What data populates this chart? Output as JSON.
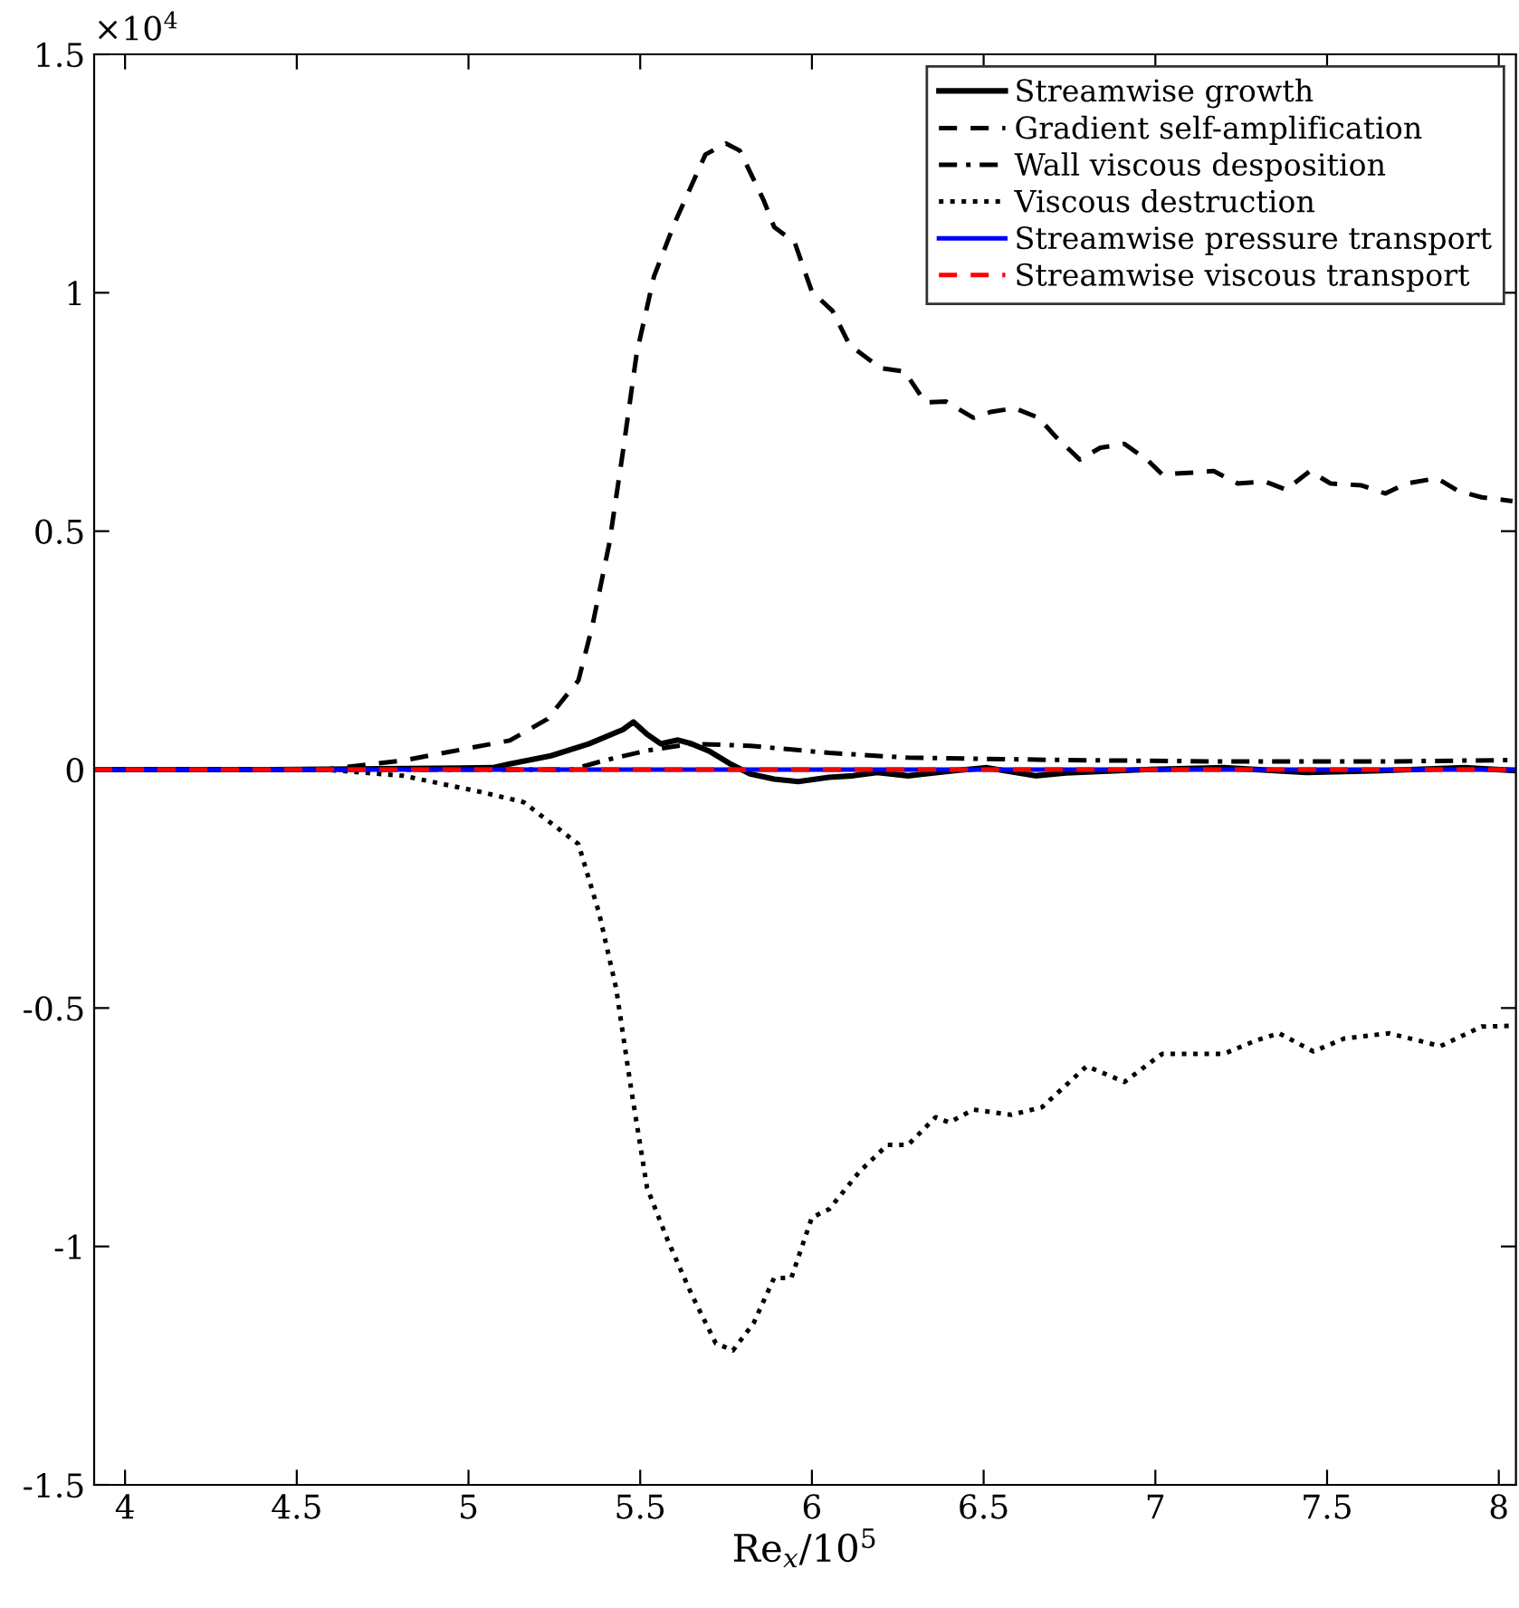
{
  "chart_data": {
    "type": "line",
    "xlabel": "Re$_{x}$/10$^{5}$",
    "annotations": [
      "×10$^{4}$"
    ],
    "xlim": [
      3.91,
      8.05
    ],
    "xticks": [
      4,
      4.5,
      5,
      5.5,
      6,
      6.5,
      7,
      7.5,
      8
    ],
    "ylim": [
      -1.5,
      1.5
    ],
    "yticks": [
      -1.5,
      -1,
      -0.5,
      0,
      0.5,
      1,
      1.5
    ],
    "grid": false,
    "legend": "top right",
    "series": [
      {
        "name": "Streamwise growth",
        "color": "#000000",
        "line_style": "solid",
        "x": [
          3.91,
          4.43,
          5.07,
          5.12,
          5.24,
          5.35,
          5.45,
          5.48,
          5.52,
          5.56,
          5.61,
          5.65,
          5.7,
          5.76,
          5.82,
          5.89,
          5.96,
          6.05,
          6.12,
          6.19,
          6.28,
          6.42,
          6.51,
          6.65,
          6.74,
          6.97,
          7.2,
          7.44,
          7.67,
          7.9,
          8.05
        ],
        "values": [
          0,
          0,
          0.004,
          0.012,
          0.029,
          0.054,
          0.084,
          0.1,
          0.074,
          0.054,
          0.062,
          0.054,
          0.039,
          0.013,
          -0.009,
          -0.02,
          -0.025,
          -0.016,
          -0.013,
          -0.006,
          -0.013,
          -0.002,
          0.004,
          -0.013,
          -0.007,
          0,
          0.004,
          -0.006,
          -0.002,
          0.004,
          -0.002
        ]
      },
      {
        "name": "Gradient self-amplification",
        "color": "#000000",
        "line_style": "dashed",
        "x": [
          3.91,
          4.58,
          4.81,
          5.12,
          5.23,
          5.32,
          5.36,
          5.41,
          5.45,
          5.49,
          5.54,
          5.6,
          5.69,
          5.75,
          5.79,
          5.86,
          5.89,
          5.95,
          6.0,
          6.06,
          6.11,
          6.2,
          6.27,
          6.33,
          6.39,
          6.47,
          6.52,
          6.59,
          6.66,
          6.71,
          6.78,
          6.84,
          6.91,
          6.98,
          7.02,
          7.11,
          7.17,
          7.24,
          7.32,
          7.38,
          7.45,
          7.51,
          7.6,
          7.67,
          7.73,
          7.82,
          7.88,
          7.95,
          8.04
        ],
        "values": [
          0,
          0,
          0.019,
          0.061,
          0.106,
          0.187,
          0.299,
          0.474,
          0.668,
          0.874,
          1.034,
          1.146,
          1.29,
          1.313,
          1.298,
          1.193,
          1.138,
          1.105,
          1.002,
          0.962,
          0.89,
          0.842,
          0.835,
          0.77,
          0.772,
          0.738,
          0.75,
          0.758,
          0.738,
          0.698,
          0.65,
          0.675,
          0.683,
          0.647,
          0.619,
          0.623,
          0.626,
          0.6,
          0.604,
          0.587,
          0.626,
          0.6,
          0.596,
          0.579,
          0.6,
          0.611,
          0.585,
          0.571,
          0.563
        ]
      },
      {
        "name": "Wall viscous desposition",
        "color": "#000000",
        "line_style": "dashdot",
        "x": [
          3.91,
          5.3,
          5.4,
          5.52,
          5.65,
          5.82,
          6.05,
          6.28,
          6.74,
          7.2,
          7.67,
          8.05
        ],
        "values": [
          0,
          0,
          0.02,
          0.04,
          0.054,
          0.05,
          0.035,
          0.025,
          0.02,
          0.017,
          0.017,
          0.02
        ]
      },
      {
        "name": "Viscous destruction",
        "color": "#000000",
        "line_style": "dotted",
        "x": [
          3.91,
          4.58,
          4.81,
          5.03,
          5.16,
          5.32,
          5.38,
          5.43,
          5.47,
          5.52,
          5.58,
          5.65,
          5.72,
          5.77,
          5.83,
          5.89,
          5.94,
          6.0,
          6.05,
          6.14,
          6.22,
          6.28,
          6.36,
          6.4,
          6.47,
          6.58,
          6.67,
          6.8,
          6.91,
          7.02,
          7.2,
          7.29,
          7.36,
          7.46,
          7.55,
          7.68,
          7.77,
          7.83,
          7.95,
          8.05
        ],
        "values": [
          0,
          0,
          -0.013,
          -0.046,
          -0.068,
          -0.156,
          -0.3,
          -0.459,
          -0.653,
          -0.877,
          -0.987,
          -1.101,
          -1.203,
          -1.218,
          -1.161,
          -1.066,
          -1.066,
          -0.939,
          -0.922,
          -0.842,
          -0.787,
          -0.787,
          -0.729,
          -0.74,
          -0.713,
          -0.724,
          -0.708,
          -0.622,
          -0.655,
          -0.596,
          -0.596,
          -0.569,
          -0.553,
          -0.591,
          -0.564,
          -0.553,
          -0.569,
          -0.58,
          -0.539,
          -0.537
        ]
      },
      {
        "name": "Streamwise pressure transport",
        "color": "#0000ff",
        "line_style": "solid",
        "x": [
          3.91,
          5.0,
          6.0,
          7.0,
          8.05
        ],
        "values": [
          0,
          0,
          0,
          0,
          0
        ]
      },
      {
        "name": "Streamwise viscous transport",
        "color": "#ff0000",
        "line_style": "dashed",
        "x": [
          3.91,
          5.0,
          6.0,
          7.0,
          8.05
        ],
        "values": [
          0,
          0,
          0,
          0,
          0
        ]
      }
    ]
  }
}
